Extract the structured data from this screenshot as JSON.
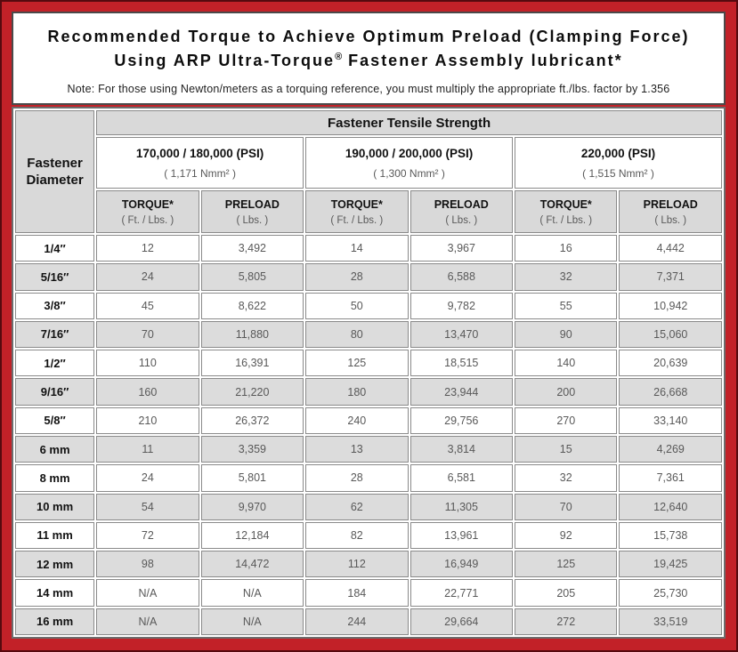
{
  "colors": {
    "frame_red": "#c22128",
    "header_gray": "#d9d9d9",
    "stripe_gray": "#dcdcdc",
    "value_text": "#595959"
  },
  "title": {
    "line1": "Recommended Torque to Achieve Optimum Preload (Clamping Force)",
    "line2_pre": "Using ARP Ultra-Torque",
    "line2_sup": "®",
    "line2_post": " Fastener Assembly lubricant*",
    "note": "Note: For those using Newton/meters as a torquing reference, you must multiply the appropriate ft./lbs. factor by 1.356"
  },
  "table": {
    "corner_line1": "Fastener",
    "corner_line2": "Diameter",
    "tensile_header": "Fastener Tensile Strength",
    "strength_groups": [
      {
        "psi": "170,000 / 180,000 (PSI)",
        "nmm": "( 1,171 Nmm² )"
      },
      {
        "psi": "190,000 / 200,000 (PSI)",
        "nmm": "( 1,300 Nmm² )"
      },
      {
        "psi": "220,000 (PSI)",
        "nmm": "( 1,515 Nmm² )"
      }
    ],
    "column_headers": {
      "torque_label": "TORQUE*",
      "torque_sub": "( Ft. / Lbs. )",
      "preload_label": "PRELOAD",
      "preload_sub": "( Lbs. )"
    },
    "rows": [
      {
        "d": "1/4″",
        "v": [
          "12",
          "3,492",
          "14",
          "3,967",
          "16",
          "4,442"
        ]
      },
      {
        "d": "5/16″",
        "v": [
          "24",
          "5,805",
          "28",
          "6,588",
          "32",
          "7,371"
        ]
      },
      {
        "d": "3/8″",
        "v": [
          "45",
          "8,622",
          "50",
          "9,782",
          "55",
          "10,942"
        ]
      },
      {
        "d": "7/16″",
        "v": [
          "70",
          "11,880",
          "80",
          "13,470",
          "90",
          "15,060"
        ]
      },
      {
        "d": "1/2″",
        "v": [
          "110",
          "16,391",
          "125",
          "18,515",
          "140",
          "20,639"
        ]
      },
      {
        "d": "9/16″",
        "v": [
          "160",
          "21,220",
          "180",
          "23,944",
          "200",
          "26,668"
        ]
      },
      {
        "d": "5/8″",
        "v": [
          "210",
          "26,372",
          "240",
          "29,756",
          "270",
          "33,140"
        ]
      },
      {
        "d": "6 mm",
        "v": [
          "11",
          "3,359",
          "13",
          "3,814",
          "15",
          "4,269"
        ]
      },
      {
        "d": "8 mm",
        "v": [
          "24",
          "5,801",
          "28",
          "6,581",
          "32",
          "7,361"
        ]
      },
      {
        "d": "10 mm",
        "v": [
          "54",
          "9,970",
          "62",
          "11,305",
          "70",
          "12,640"
        ]
      },
      {
        "d": "11 mm",
        "v": [
          "72",
          "12,184",
          "82",
          "13,961",
          "92",
          "15,738"
        ]
      },
      {
        "d": "12 mm",
        "v": [
          "98",
          "14,472",
          "112",
          "16,949",
          "125",
          "19,425"
        ]
      },
      {
        "d": "14 mm",
        "v": [
          "N/A",
          "N/A",
          "184",
          "22,771",
          "205",
          "25,730"
        ]
      },
      {
        "d": "16 mm",
        "v": [
          "N/A",
          "N/A",
          "244",
          "29,664",
          "272",
          "33,519"
        ]
      }
    ]
  }
}
